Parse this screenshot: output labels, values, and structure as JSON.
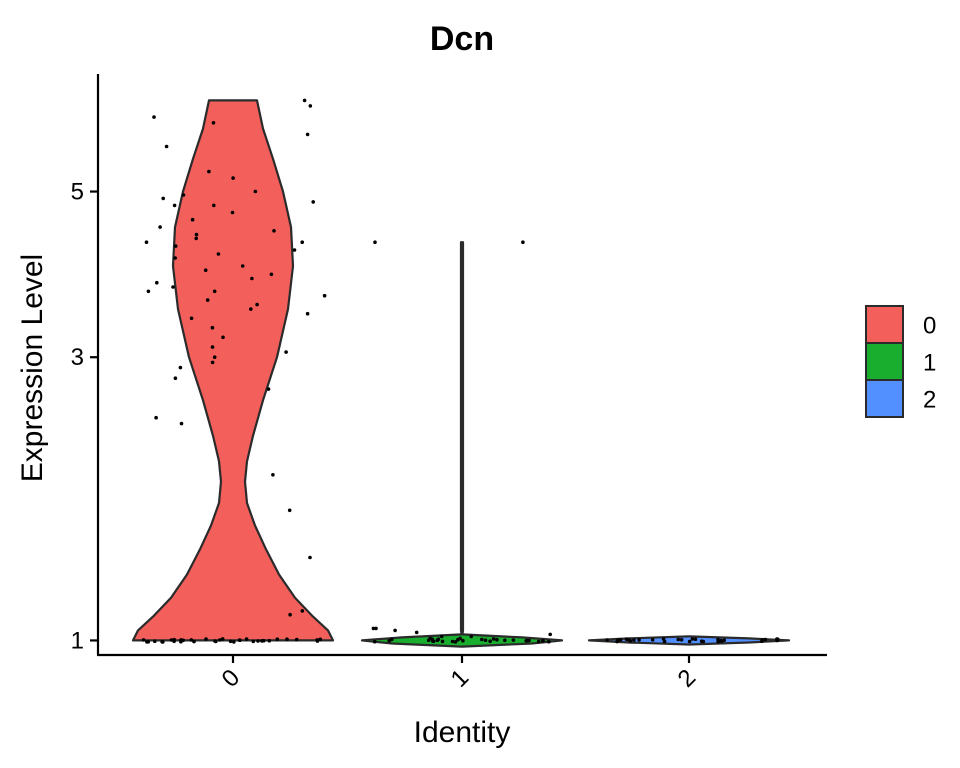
{
  "chart_data": {
    "type": "violin",
    "title": "Dcn",
    "xlabel": "Identity",
    "ylabel": "Expression Level",
    "yscale": "log1p",
    "ylim": [
      0.93,
      7.0
    ],
    "yticks": [
      1,
      3,
      5
    ],
    "categories": [
      "0",
      "1",
      "2"
    ],
    "colors": [
      "#F35F5B",
      "#19AE2D",
      "#5390FF"
    ],
    "legend": {
      "position": "right",
      "entries": [
        "0",
        "1",
        "2"
      ]
    },
    "grid": false,
    "violins": [
      {
        "category": "0",
        "min": 1.0,
        "max": 6.5,
        "density": [
          [
            1.0,
            1.0
          ],
          [
            1.05,
            0.95
          ],
          [
            1.12,
            0.8
          ],
          [
            1.22,
            0.62
          ],
          [
            1.35,
            0.46
          ],
          [
            1.5,
            0.33
          ],
          [
            1.65,
            0.22
          ],
          [
            1.8,
            0.14
          ],
          [
            1.95,
            0.12
          ],
          [
            2.1,
            0.14
          ],
          [
            2.3,
            0.2
          ],
          [
            2.6,
            0.3
          ],
          [
            3.0,
            0.44
          ],
          [
            3.5,
            0.55
          ],
          [
            4.0,
            0.6
          ],
          [
            4.5,
            0.58
          ],
          [
            5.0,
            0.5
          ],
          [
            5.5,
            0.4
          ],
          [
            6.0,
            0.3
          ],
          [
            6.5,
            0.24
          ]
        ]
      },
      {
        "category": "1",
        "min": 0.97,
        "max": 4.3,
        "density": [
          [
            0.97,
            0.0
          ],
          [
            0.985,
            0.7
          ],
          [
            1.0,
            1.0
          ],
          [
            1.015,
            0.6
          ],
          [
            1.03,
            0.0
          ],
          [
            1.05,
            0.01
          ],
          [
            4.3,
            0.01
          ]
        ]
      },
      {
        "category": "2",
        "min": 0.98,
        "max": 1.02,
        "density": [
          [
            0.98,
            0.0
          ],
          [
            0.99,
            0.6
          ],
          [
            1.0,
            1.0
          ],
          [
            1.01,
            0.6
          ],
          [
            1.02,
            0.0
          ]
        ]
      }
    ],
    "points": [
      {
        "category": "0",
        "values": [
          6.5,
          6.4,
          6.2,
          6.1,
          5.9,
          5.7,
          5.3,
          5.2,
          5.0,
          4.95,
          4.9,
          4.85,
          4.8,
          4.8,
          4.7,
          4.6,
          4.5,
          4.45,
          4.4,
          4.35,
          4.3,
          4.3,
          4.25,
          4.2,
          4.15,
          4.1,
          4.0,
          3.95,
          3.9,
          3.85,
          3.8,
          3.75,
          3.7,
          3.7,
          3.65,
          3.6,
          3.55,
          3.5,
          3.45,
          3.4,
          3.3,
          3.2,
          3.1,
          3.05,
          3.0,
          2.95,
          2.9,
          2.8,
          2.7,
          2.45,
          2.4,
          2.0,
          1.75,
          1.45,
          1.15,
          1.13,
          1.0,
          1.0,
          1.0,
          1.0,
          1.0,
          1.0,
          1.0,
          1.0,
          1.0,
          1.0,
          1.0,
          1.0,
          1.0,
          1.0,
          1.0,
          1.0,
          1.0,
          1.0,
          1.0,
          1.0,
          1.0,
          1.0,
          1.0,
          1.0,
          1.0,
          1.0,
          1.0,
          1.0,
          1.0,
          1.0,
          1.0,
          1.0,
          1.0,
          1.0,
          1.0
        ]
      },
      {
        "category": "1",
        "values": [
          4.3,
          4.3,
          1.06,
          1.06,
          1.05,
          1.04,
          1.03,
          1.02,
          1.02,
          1.01,
          1.01,
          1.0,
          1.0,
          1.0,
          1.0,
          1.0,
          1.0,
          1.0,
          1.0,
          1.0,
          1.0,
          1.0,
          1.0,
          1.0,
          1.0,
          1.0,
          1.0,
          1.0,
          1.0,
          1.0,
          1.0,
          1.0,
          1.0,
          1.0,
          1.0,
          1.0,
          1.0,
          1.0,
          1.0,
          1.0
        ]
      },
      {
        "category": "2",
        "values": [
          1.0,
          1.0,
          1.0,
          1.0,
          1.0,
          1.0,
          1.0,
          1.0,
          1.0,
          1.0,
          1.0,
          1.0,
          1.0,
          1.0,
          1.0,
          1.0,
          1.0,
          1.0,
          1.0,
          1.0,
          1.0,
          1.0,
          1.0,
          1.0,
          1.0,
          1.0,
          1.0,
          1.0,
          1.0,
          1.0
        ]
      }
    ]
  }
}
